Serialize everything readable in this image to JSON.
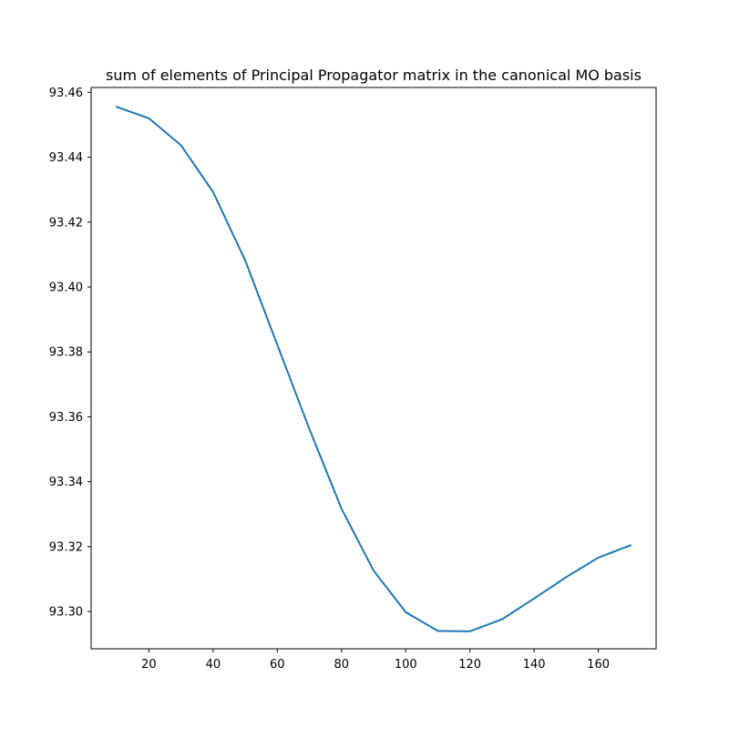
{
  "chart_data": {
    "type": "line",
    "title": "sum of elements of Principal Propagator matrix in the canonical MO basis",
    "xlabel": "",
    "ylabel": "",
    "xlim": [
      2,
      178
    ],
    "ylim": [
      93.2885,
      93.4615
    ],
    "x_ticks": [
      20,
      40,
      60,
      80,
      100,
      120,
      140,
      160
    ],
    "y_ticks": [
      93.3,
      93.32,
      93.34,
      93.36,
      93.38,
      93.4,
      93.42,
      93.44,
      93.46
    ],
    "x_tick_labels": [
      "20",
      "40",
      "60",
      "80",
      "100",
      "120",
      "140",
      "160"
    ],
    "y_tick_labels": [
      "93.30",
      "93.32",
      "93.34",
      "93.36",
      "93.38",
      "93.40",
      "93.42",
      "93.44",
      "93.46"
    ],
    "grid": false,
    "series": [
      {
        "color": "#1f77b4",
        "x": [
          10,
          20,
          30,
          40,
          50,
          60,
          70,
          80,
          90,
          100,
          110,
          120,
          130,
          140,
          150,
          160,
          170
        ],
        "y": [
          93.4555,
          93.452,
          93.4437,
          93.4293,
          93.4082,
          93.3822,
          93.3562,
          93.3317,
          93.3126,
          93.2998,
          93.294,
          93.2939,
          93.2976,
          93.304,
          93.3106,
          93.3166,
          93.3204
        ]
      }
    ]
  }
}
